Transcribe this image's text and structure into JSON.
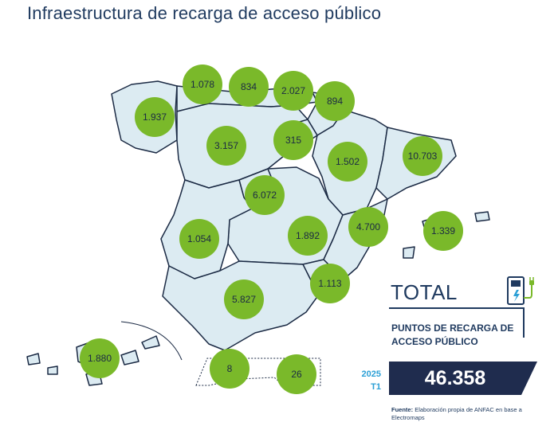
{
  "title": "Infraestructura de recarga de acceso público",
  "chart_data": {
    "type": "map",
    "series": [
      {
        "name": "",
        "values": [
          {
            "label": "1.937",
            "value": 1937
          },
          {
            "label": "1.078",
            "value": 1078
          },
          {
            "label": "834",
            "value": 834
          },
          {
            "label": "2.027",
            "value": 2027
          },
          {
            "label": "894",
            "value": 894
          },
          {
            "label": "3.157",
            "value": 3157
          },
          {
            "label": "315",
            "value": 315
          },
          {
            "label": "1.502",
            "value": 1502
          },
          {
            "label": "10.703",
            "value": 10703
          },
          {
            "label": "6.072",
            "value": 6072
          },
          {
            "label": "1.054",
            "value": 1054
          },
          {
            "label": "1.892",
            "value": 1892
          },
          {
            "label": "4.700",
            "value": 4700
          },
          {
            "label": "1.339",
            "value": 1339
          },
          {
            "label": "1.113",
            "value": 1113
          },
          {
            "label": "5.827",
            "value": 5827
          },
          {
            "label": "1.880",
            "value": 1880
          },
          {
            "label": "8",
            "value": 8
          },
          {
            "label": "26",
            "value": 26
          }
        ]
      }
    ]
  },
  "total": {
    "heading": "TOTAL",
    "subtitle": "PUNTOS DE RECARGA DE ACCESO PÚBLICO",
    "year": "2025",
    "quarter": "T1",
    "value": "46.358"
  },
  "source": {
    "label": "Fuente:",
    "text": "Elaboración propia de ANFAC en base a Electromaps"
  },
  "colors": {
    "bubble": "#7ab92a",
    "map_fill": "#dcebf2",
    "region_border": "#1b2a44",
    "title": "#1f3a5f",
    "total_box": "#1f2c4e",
    "year": "#2a9fd6"
  }
}
